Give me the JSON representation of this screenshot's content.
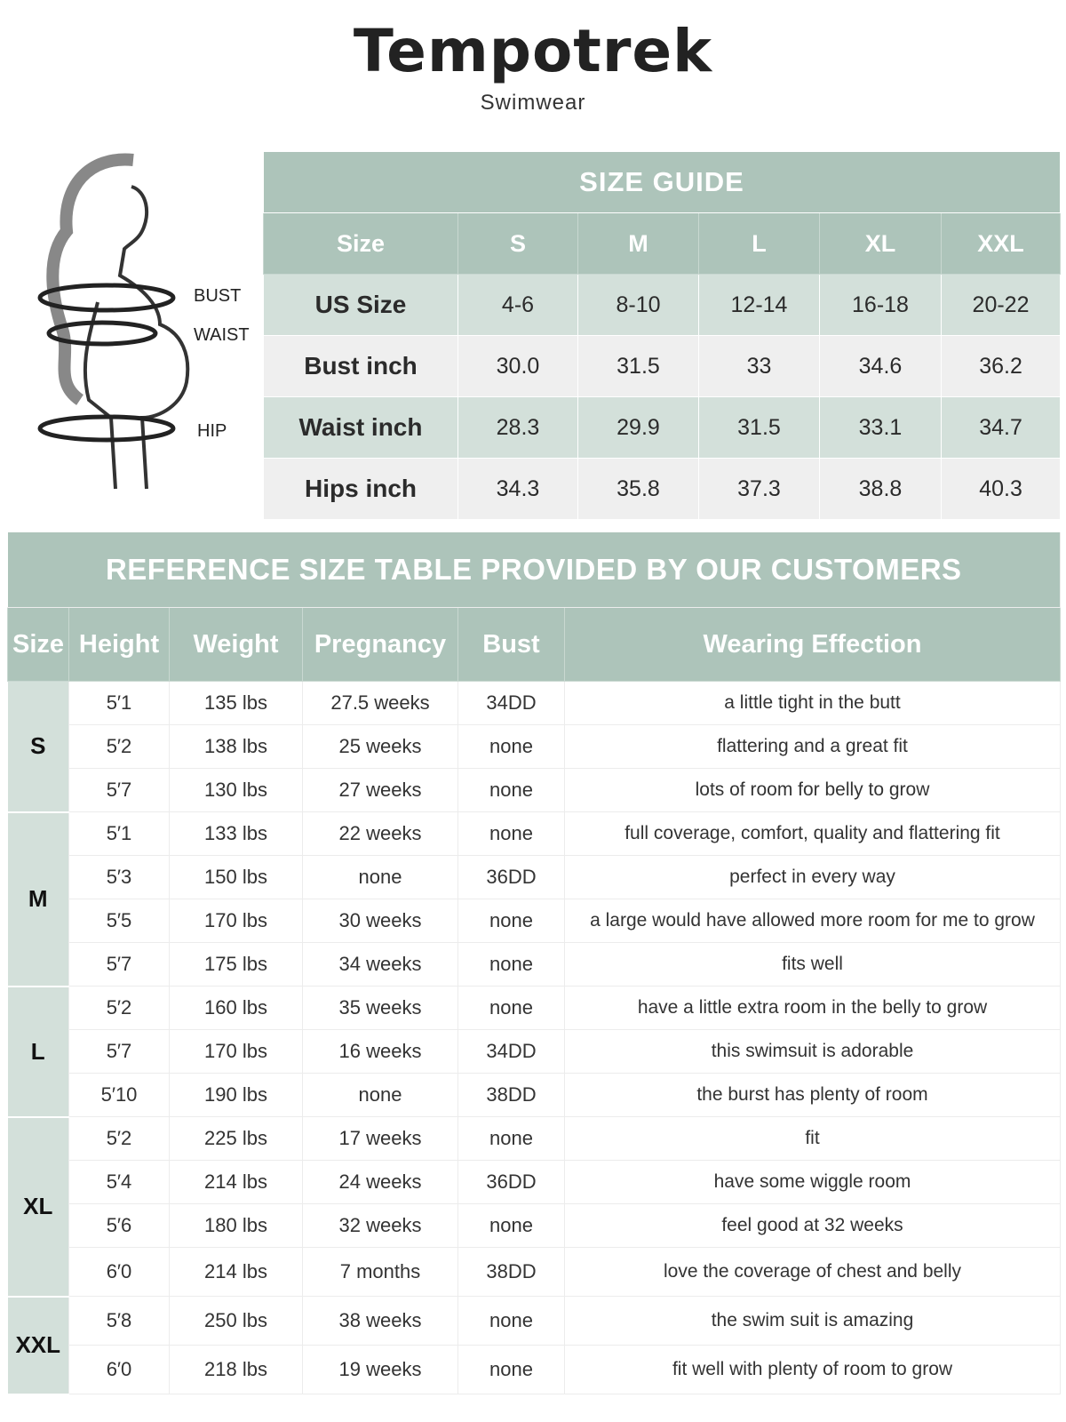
{
  "brand": {
    "name": "Tempotrek",
    "subtitle": "Swimwear"
  },
  "figure_labels": {
    "bust": "BUST",
    "waist": "WAIST",
    "hip": "HIP"
  },
  "size_guide": {
    "title": "SIZE GUIDE",
    "headers": [
      "Size",
      "S",
      "M",
      "L",
      "XL",
      "XXL"
    ],
    "rows": [
      {
        "label": "US Size",
        "values": [
          "4-6",
          "8-10",
          "12-14",
          "16-18",
          "20-22"
        ]
      },
      {
        "label": "Bust inch",
        "values": [
          "30.0",
          "31.5",
          "33",
          "34.6",
          "36.2"
        ]
      },
      {
        "label": "Waist inch",
        "values": [
          "28.3",
          "29.9",
          "31.5",
          "33.1",
          "34.7"
        ]
      },
      {
        "label": "Hips inch",
        "values": [
          "34.3",
          "35.8",
          "37.3",
          "38.8",
          "40.3"
        ]
      }
    ]
  },
  "reference": {
    "title": "REFERENCE SIZE TABLE PROVIDED BY OUR CUSTOMERS",
    "headers": [
      "Size",
      "Height",
      "Weight",
      "Pregnancy",
      "Bust",
      "Wearing Effection"
    ],
    "groups": [
      {
        "size": "S",
        "rows": [
          [
            "5′1",
            "135 lbs",
            "27.5 weeks",
            "34DD",
            "a little tight in the butt"
          ],
          [
            "5′2",
            "138 lbs",
            "25 weeks",
            "none",
            "flattering and a great fit"
          ],
          [
            "5′7",
            "130 lbs",
            "27 weeks",
            "none",
            "lots of room for belly to grow"
          ]
        ]
      },
      {
        "size": "M",
        "rows": [
          [
            "5′1",
            "133 lbs",
            "22 weeks",
            "none",
            "full coverage, comfort, quality and flattering fit"
          ],
          [
            "5′3",
            "150 lbs",
            "none",
            "36DD",
            "perfect in every way"
          ],
          [
            "5′5",
            "170 lbs",
            "30 weeks",
            "none",
            "a large would have allowed more room for me to grow"
          ],
          [
            "5′7",
            "175 lbs",
            "34 weeks",
            "none",
            "fits well"
          ]
        ]
      },
      {
        "size": "L",
        "rows": [
          [
            "5′2",
            "160 lbs",
            "35 weeks",
            "none",
            "have a little extra room in the belly to grow"
          ],
          [
            "5′7",
            "170 lbs",
            "16 weeks",
            "34DD",
            "this swimsuit is adorable"
          ],
          [
            "5′10",
            "190 lbs",
            "none",
            "38DD",
            "the burst has plenty of room"
          ]
        ]
      },
      {
        "size": "XL",
        "rows": [
          [
            "5′2",
            "225 lbs",
            "17 weeks",
            "none",
            "fit"
          ],
          [
            "5′4",
            "214 lbs",
            "24 weeks",
            "36DD",
            "have some wiggle room"
          ],
          [
            "5′6",
            "180 lbs",
            "32 weeks",
            "none",
            "feel good at 32 weeks"
          ],
          [
            "6′0",
            "214 lbs",
            "7 months",
            "38DD",
            "love the coverage of chest and belly"
          ]
        ]
      },
      {
        "size": "XXL",
        "rows": [
          [
            "5′8",
            "250 lbs",
            "38 weeks",
            "none",
            "the swim suit is amazing"
          ],
          [
            "6′0",
            "218 lbs",
            "19 weeks",
            "none",
            "fit well with plenty of room to grow"
          ]
        ]
      }
    ]
  },
  "colors": {
    "header": "#adc4ba",
    "tint": "#d3e0da",
    "gray": "#efefef"
  }
}
